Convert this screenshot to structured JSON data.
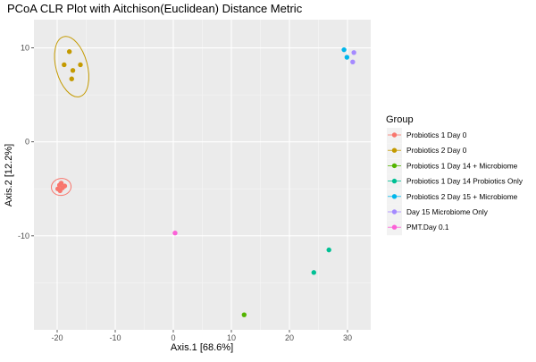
{
  "chart_data": {
    "type": "scatter",
    "title": "PCoA CLR Plot with Aitchison(Euclidean) Distance Metric",
    "xlabel": "Axis.1   [68.6%]",
    "ylabel": "Axis.2   [12.2%]",
    "xlim": [
      -24,
      34
    ],
    "ylim": [
      -20,
      13
    ],
    "x_ticks": [
      -20,
      -10,
      0,
      10,
      20,
      30
    ],
    "y_ticks": [
      -10,
      0,
      10
    ],
    "grid": true,
    "legend_title": "Group",
    "legend_position": "right",
    "series": [
      {
        "name": "Probiotics 1 Day 0",
        "color": "#F8766D",
        "points": [
          [
            -19.6,
            -4.6
          ],
          [
            -19.1,
            -4.9
          ],
          [
            -18.7,
            -4.7
          ],
          [
            -19.3,
            -4.4
          ],
          [
            -19.9,
            -5.0
          ],
          [
            -19.5,
            -5.2
          ]
        ],
        "ellipse": {
          "cx": -19.3,
          "cy": -4.8,
          "rx": 1.7,
          "ry": 0.9,
          "angle": -8
        }
      },
      {
        "name": "Probiotics 2 Day 0",
        "color": "#C49A00",
        "points": [
          [
            -17.9,
            9.6
          ],
          [
            -18.8,
            8.2
          ],
          [
            -17.3,
            7.6
          ],
          [
            -16.0,
            8.2
          ],
          [
            -17.5,
            6.7
          ]
        ],
        "ellipse": {
          "cx": -17.5,
          "cy": 8.0,
          "rx": 2.7,
          "ry": 3.3,
          "angle": -15
        }
      },
      {
        "name": "Probiotics 1 Day 14 + Microbiome",
        "color": "#53B400",
        "points": [
          [
            12.2,
            -18.4
          ]
        ]
      },
      {
        "name": "Probiotics 1 Day 14 Probiotics Only",
        "color": "#00C094",
        "points": [
          [
            26.8,
            -11.5
          ],
          [
            24.2,
            -13.9
          ]
        ]
      },
      {
        "name": "Probiotics 2 Day 15 + Microbiome",
        "color": "#00B6EB",
        "points": [
          [
            29.4,
            9.8
          ],
          [
            29.9,
            9.0
          ]
        ]
      },
      {
        "name": "Day 15 Microbiome Only",
        "color": "#A58AFF",
        "points": [
          [
            31.1,
            9.5
          ],
          [
            30.9,
            8.5
          ]
        ]
      },
      {
        "name": "PMT.Day 0.1",
        "color": "#FB61D7",
        "points": [
          [
            0.3,
            -9.7
          ]
        ]
      }
    ]
  }
}
